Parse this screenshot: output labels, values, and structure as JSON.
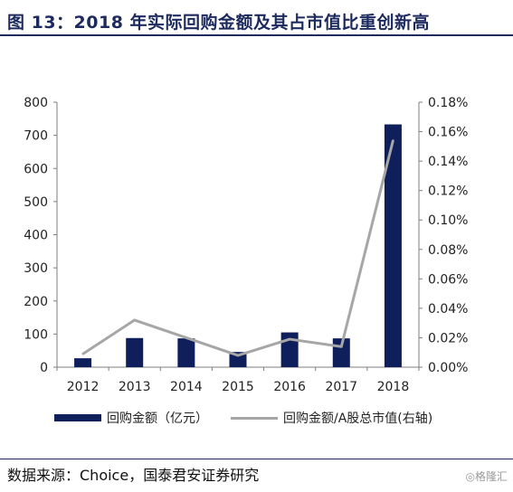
{
  "title": "图 13：2018 年实际回购金额及其占市值比重创新高",
  "source": "数据来源：Choice，国泰君安证券研究",
  "watermark": "◎格隆汇",
  "colors": {
    "bar": "#0f1f5c",
    "line": "#a6a6a6",
    "title": "#1c2a5e"
  },
  "chart_data": {
    "type": "bar",
    "categories": [
      "2012",
      "2013",
      "2014",
      "2015",
      "2016",
      "2017",
      "2018"
    ],
    "series": [
      {
        "name": "回购金额（亿元）",
        "type": "bar",
        "axis": "left",
        "values": [
          27,
          88,
          87,
          46,
          105,
          87,
          733
        ]
      },
      {
        "name": "回购金额/A股总市值(右轴)",
        "type": "line",
        "axis": "right",
        "values": [
          0.009,
          0.032,
          0.02,
          0.008,
          0.019,
          0.014,
          0.154
        ]
      }
    ],
    "ylim_left": [
      0,
      800
    ],
    "yticks_left": [
      "0",
      "100",
      "200",
      "300",
      "400",
      "500",
      "600",
      "700",
      "800"
    ],
    "ylim_right": [
      0,
      0.18
    ],
    "yticks_right": [
      "0.00%",
      "0.02%",
      "0.04%",
      "0.06%",
      "0.08%",
      "0.10%",
      "0.12%",
      "0.14%",
      "0.16%",
      "0.18%"
    ],
    "grid": false,
    "legend_position": "bottom"
  }
}
